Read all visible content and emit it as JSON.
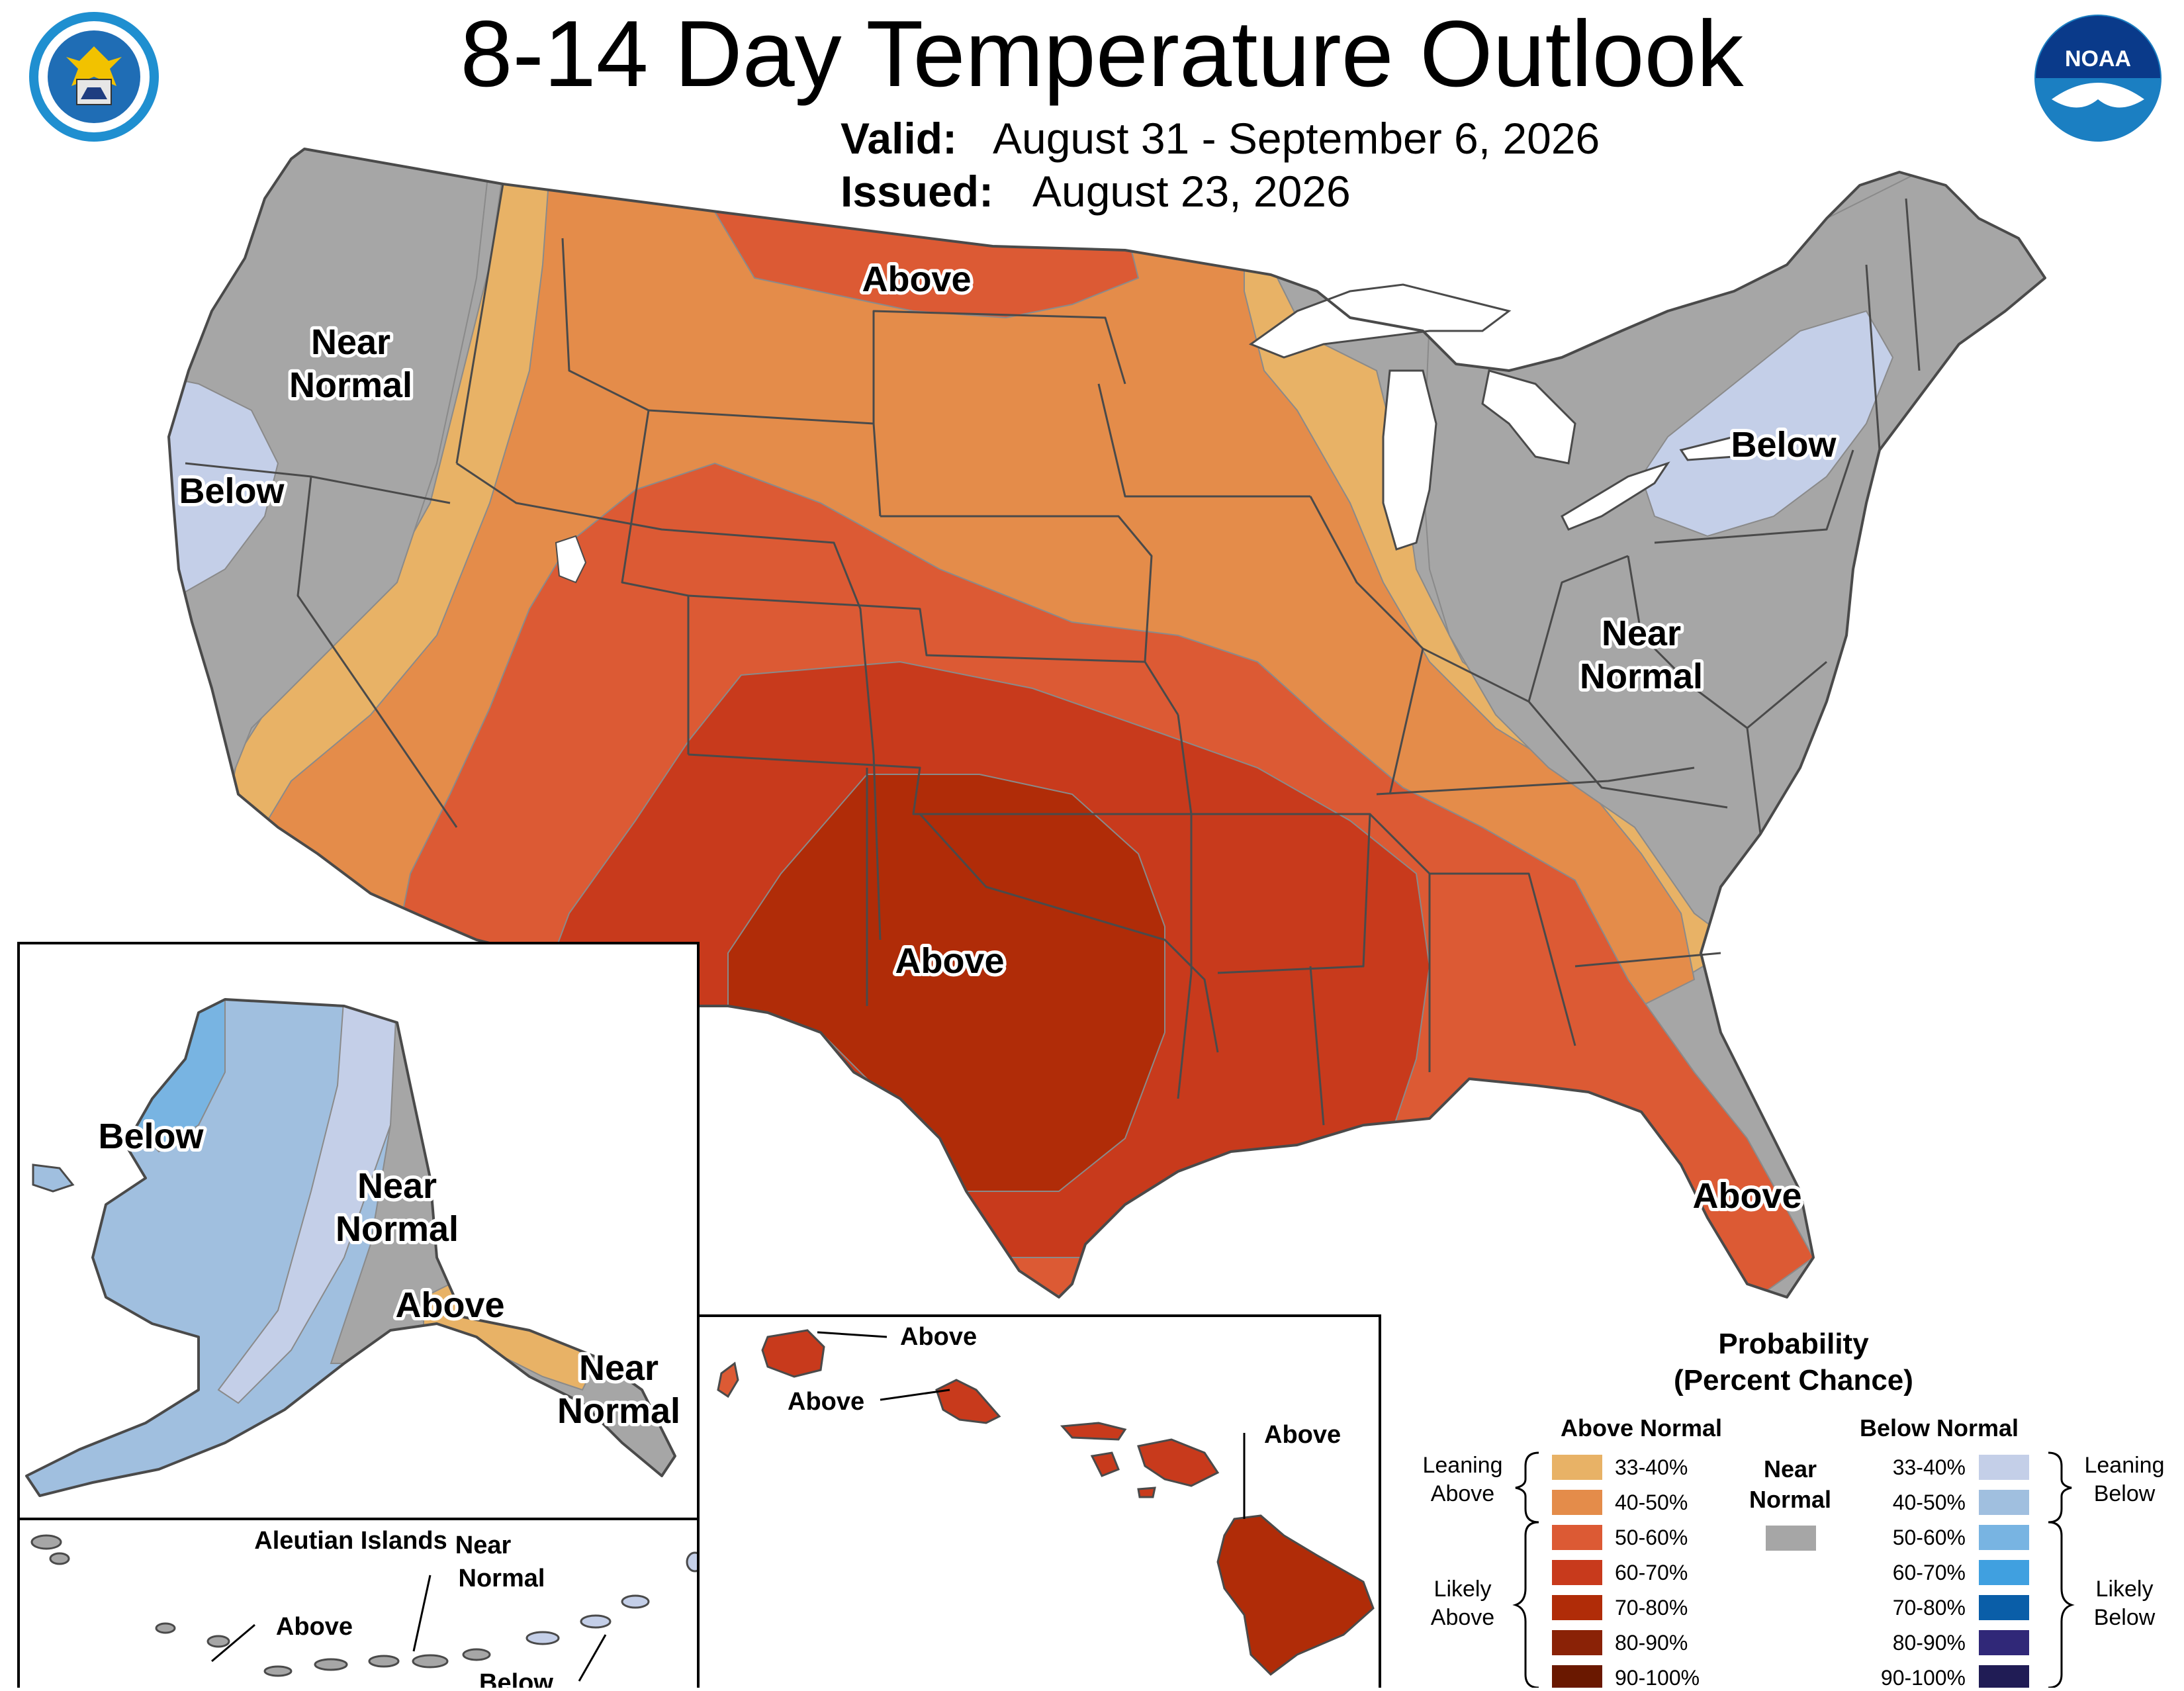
{
  "header": {
    "title": "8-14 Day Temperature Outlook",
    "valid_label": "Valid:",
    "valid_value": "August 31 - September 6, 2026",
    "issued_label": "Issued:",
    "issued_value": "August 23, 2026"
  },
  "logos": {
    "commerce_seal": "department-of-commerce-seal",
    "noaa_logo": "noaa-logo",
    "noaa_text": "NOAA"
  },
  "conus_labels": {
    "above_north": "Above",
    "near_normal_west_1": "Near",
    "near_normal_west_2": "Normal",
    "below_west": "Below",
    "below_northeast": "Below",
    "near_normal_east_1": "Near",
    "near_normal_east_2": "Normal",
    "above_south": "Above",
    "above_florida": "Above"
  },
  "alaska_labels": {
    "below": "Below",
    "near_normal_1_a": "Near",
    "near_normal_1_b": "Normal",
    "above": "Above",
    "near_normal_2_a": "Near",
    "near_normal_2_b": "Normal"
  },
  "aleutian_labels": {
    "title": "Aleutian Islands",
    "near_1": "Near",
    "near_2": "Normal",
    "above": "Above",
    "below": "Below"
  },
  "hawaii_labels": {
    "above_1": "Above",
    "above_2": "Above",
    "above_3": "Above"
  },
  "legend": {
    "title_1": "Probability",
    "title_2": "(Percent Chance)",
    "above_header": "Above Normal",
    "below_header": "Below Normal",
    "near_header_1": "Near",
    "near_header_2": "Normal",
    "leaning_above_1": "Leaning",
    "leaning_above_2": "Above",
    "likely_above_1": "Likely",
    "likely_above_2": "Above",
    "leaning_below_1": "Leaning",
    "leaning_below_2": "Below",
    "likely_below_1": "Likely",
    "likely_below_2": "Below",
    "above_bins": [
      {
        "label": "33-40%",
        "color": "#e8b266"
      },
      {
        "label": "40-50%",
        "color": "#e48c4a"
      },
      {
        "label": "50-60%",
        "color": "#dc5a34"
      },
      {
        "label": "60-70%",
        "color": "#c83a1c"
      },
      {
        "label": "70-80%",
        "color": "#b02c08"
      },
      {
        "label": "80-90%",
        "color": "#8a2206"
      },
      {
        "label": "90-100%",
        "color": "#6a1800"
      }
    ],
    "below_bins": [
      {
        "label": "33-40%",
        "color": "#c4cfe8"
      },
      {
        "label": "40-50%",
        "color": "#a0bfdf"
      },
      {
        "label": "50-60%",
        "color": "#78b4e2"
      },
      {
        "label": "60-70%",
        "color": "#40a0e0"
      },
      {
        "label": "70-80%",
        "color": "#0a5ea8"
      },
      {
        "label": "80-90%",
        "color": "#302878"
      },
      {
        "label": "90-100%",
        "color": "#201c55"
      }
    ],
    "near_color": "#a6a6a6"
  }
}
